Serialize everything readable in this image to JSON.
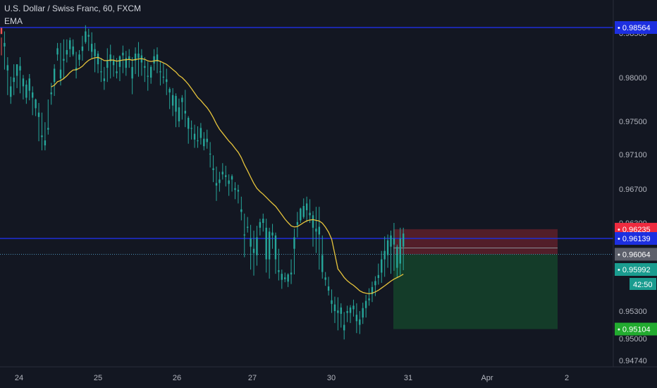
{
  "header": {
    "title": "U.S. Dollar / Swiss Franc, 60, FXCM",
    "indicator": "EMA"
  },
  "chart_data": {
    "type": "candlestick",
    "symbol": "U.S. Dollar / Swiss Franc",
    "interval": "60",
    "source": "FXCM",
    "colors": {
      "background": "#131722",
      "up": "#26a69a",
      "down": "#ef5350",
      "ema": "#e6c43c",
      "hline": "#1e2fd6",
      "current_line": "#4a8fb4",
      "stop_zone": "#5a1f2a",
      "target_zone": "#15402a",
      "tag_red": "#ef2b3f",
      "tag_blue": "#1d2fe0",
      "tag_gray": "#5d606b",
      "tag_teal": "#1a9c8f",
      "tag_green": "#22ab2f"
    },
    "y_ticks": [
      "0.98500",
      "0.98000",
      "0.97500",
      "0.97100",
      "0.96700",
      "0.96300",
      "0.95300",
      "0.95000",
      "0.94740"
    ],
    "x_ticks": [
      "24",
      "25",
      "26",
      "27",
      "30",
      "31",
      "Apr",
      "2"
    ],
    "horizontal_lines": [
      0.98564,
      0.96139
    ],
    "price_tags": [
      {
        "label": "0.98564",
        "value": 0.98564,
        "kind": "blue"
      },
      {
        "label": "0.96235",
        "value": 0.96235,
        "kind": "red"
      },
      {
        "label": "0.96139",
        "value": 0.96139,
        "kind": "blue"
      },
      {
        "label": "0.96064",
        "value": 0.96064,
        "kind": "gray"
      },
      {
        "label": "0.95992",
        "value": 0.95992,
        "kind": "teal"
      },
      {
        "label": "0.95104",
        "value": 0.95104,
        "kind": "green"
      }
    ],
    "countdown": "42:50",
    "current_price": 0.96064,
    "position": {
      "entry": 0.96064,
      "stop": 0.96235,
      "target": 0.95104
    },
    "ohlc": [
      [
        0.9856,
        0.9845,
        0.9849,
        0.9825
      ],
      [
        0.9835,
        0.9852,
        0.9839,
        0.9809
      ],
      [
        0.9808,
        0.9823,
        0.9814,
        0.978
      ],
      [
        0.9778,
        0.9801,
        0.979,
        0.977
      ],
      [
        0.9795,
        0.9815,
        0.98,
        0.978
      ],
      [
        0.9802,
        0.9812,
        0.9815,
        0.9788
      ],
      [
        0.9808,
        0.9823,
        0.9813,
        0.9782
      ],
      [
        0.979,
        0.9803,
        0.9799,
        0.9775
      ],
      [
        0.9777,
        0.9797,
        0.9792,
        0.977
      ],
      [
        0.9785,
        0.9804,
        0.9799,
        0.9774
      ],
      [
        0.9777,
        0.979,
        0.9783,
        0.9757
      ],
      [
        0.9765,
        0.9776,
        0.9775,
        0.9756
      ],
      [
        0.9755,
        0.9771,
        0.976,
        0.9726
      ],
      [
        0.9731,
        0.976,
        0.9733,
        0.9715
      ],
      [
        0.9721,
        0.9749,
        0.9727,
        0.9715
      ],
      [
        0.974,
        0.9775,
        0.9742,
        0.9734
      ],
      [
        0.9781,
        0.9794,
        0.9783,
        0.9769
      ],
      [
        0.9795,
        0.9815,
        0.981,
        0.9779
      ],
      [
        0.9826,
        0.9839,
        0.9833,
        0.9819
      ],
      [
        0.9799,
        0.9839,
        0.9809,
        0.9791
      ],
      [
        0.9819,
        0.9843,
        0.9821,
        0.9798
      ],
      [
        0.9826,
        0.9843,
        0.9831,
        0.9817
      ],
      [
        0.9832,
        0.9845,
        0.9842,
        0.9823
      ],
      [
        0.9826,
        0.9843,
        0.9835,
        0.9824
      ],
      [
        0.9808,
        0.9829,
        0.9811,
        0.9799
      ],
      [
        0.982,
        0.9831,
        0.9826,
        0.9813
      ],
      [
        0.983,
        0.9847,
        0.9835,
        0.9819
      ],
      [
        0.984,
        0.9859,
        0.9852,
        0.9838
      ],
      [
        0.9846,
        0.9855,
        0.9848,
        0.983
      ],
      [
        0.9829,
        0.9851,
        0.9838,
        0.9822
      ],
      [
        0.9824,
        0.9839,
        0.9832,
        0.9806
      ],
      [
        0.9815,
        0.983,
        0.9827,
        0.9805
      ],
      [
        0.9806,
        0.9822,
        0.9807,
        0.9795
      ],
      [
        0.9796,
        0.9812,
        0.9799,
        0.9786
      ],
      [
        0.9811,
        0.9833,
        0.9819,
        0.9795
      ],
      [
        0.9818,
        0.9837,
        0.9826,
        0.9799
      ],
      [
        0.9814,
        0.9825,
        0.9819,
        0.9801
      ],
      [
        0.9805,
        0.9822,
        0.9807,
        0.9799
      ],
      [
        0.9812,
        0.9825,
        0.9824,
        0.9796
      ],
      [
        0.9825,
        0.9836,
        0.9828,
        0.9805
      ],
      [
        0.9811,
        0.983,
        0.9822,
        0.9802
      ],
      [
        0.982,
        0.9832,
        0.9824,
        0.9811
      ],
      [
        0.9799,
        0.9823,
        0.9812,
        0.9781
      ],
      [
        0.9819,
        0.9834,
        0.9827,
        0.9804
      ],
      [
        0.9822,
        0.984,
        0.9827,
        0.9801
      ],
      [
        0.9817,
        0.9832,
        0.9825,
        0.9802
      ],
      [
        0.9811,
        0.9823,
        0.9813,
        0.9795
      ],
      [
        0.9801,
        0.9818,
        0.9802,
        0.9785
      ],
      [
        0.98,
        0.9814,
        0.9812,
        0.9793
      ],
      [
        0.9816,
        0.9832,
        0.9824,
        0.9808
      ],
      [
        0.9818,
        0.9834,
        0.9826,
        0.9805
      ],
      [
        0.9806,
        0.9818,
        0.9807,
        0.9791
      ],
      [
        0.98,
        0.9816,
        0.9801,
        0.9793
      ],
      [
        0.9795,
        0.981,
        0.9798,
        0.978
      ],
      [
        0.9783,
        0.9789,
        0.9787,
        0.9764
      ],
      [
        0.9768,
        0.9788,
        0.978,
        0.9756
      ],
      [
        0.9761,
        0.9782,
        0.9779,
        0.9743
      ],
      [
        0.975,
        0.9776,
        0.9766,
        0.9743
      ],
      [
        0.9772,
        0.978,
        0.9777,
        0.9752
      ],
      [
        0.9759,
        0.9786,
        0.9762,
        0.9743
      ],
      [
        0.9741,
        0.9756,
        0.9754,
        0.9723
      ],
      [
        0.9741,
        0.9751,
        0.9742,
        0.9728
      ],
      [
        0.9728,
        0.9746,
        0.9735,
        0.9718
      ],
      [
        0.9726,
        0.9744,
        0.9727,
        0.9718
      ],
      [
        0.973,
        0.9748,
        0.9742,
        0.9722
      ],
      [
        0.972,
        0.9737,
        0.9729,
        0.9715
      ],
      [
        0.9725,
        0.974,
        0.9729,
        0.9717
      ],
      [
        0.971,
        0.9725,
        0.9711,
        0.9695
      ],
      [
        0.9692,
        0.9709,
        0.9694,
        0.9678
      ],
      [
        0.9674,
        0.9696,
        0.9677,
        0.9656
      ],
      [
        0.9677,
        0.969,
        0.9681,
        0.9667
      ],
      [
        0.9687,
        0.97,
        0.969,
        0.9681
      ],
      [
        0.9684,
        0.9697,
        0.9686,
        0.9673
      ],
      [
        0.9676,
        0.9687,
        0.968,
        0.9662
      ],
      [
        0.9681,
        0.9687,
        0.9685,
        0.9667
      ],
      [
        0.9669,
        0.9678,
        0.9671,
        0.9658
      ],
      [
        0.9667,
        0.9675,
        0.9669,
        0.9653
      ],
      [
        0.9643,
        0.9661,
        0.9646,
        0.9633
      ],
      [
        0.9617,
        0.9641,
        0.9618,
        0.9605
      ],
      [
        0.9625,
        0.9637,
        0.9626,
        0.962
      ],
      [
        0.961,
        0.9628,
        0.9614,
        0.9599
      ],
      [
        0.9607,
        0.9622,
        0.9609,
        0.9589
      ],
      [
        0.9606,
        0.9627,
        0.9615,
        0.9601
      ],
      [
        0.9625,
        0.9635,
        0.9631,
        0.9617
      ],
      [
        0.963,
        0.9641,
        0.9635,
        0.9621
      ],
      [
        0.9604,
        0.9635,
        0.9625,
        0.9594
      ],
      [
        0.9604,
        0.9625,
        0.9621,
        0.9584
      ],
      [
        0.9617,
        0.9629,
        0.962,
        0.9609
      ],
      [
        0.9604,
        0.962,
        0.9617,
        0.9592
      ],
      [
        0.9595,
        0.9609,
        0.9598,
        0.9581
      ],
      [
        0.9582,
        0.9599,
        0.9592,
        0.9567
      ],
      [
        0.9583,
        0.9594,
        0.9586,
        0.9578
      ],
      [
        0.9579,
        0.9593,
        0.9591,
        0.957
      ],
      [
        0.9591,
        0.9604,
        0.9594,
        0.9575
      ],
      [
        0.9609,
        0.9624,
        0.9615,
        0.9591
      ],
      [
        0.9628,
        0.9643,
        0.9631,
        0.9615
      ],
      [
        0.9633,
        0.9648,
        0.9647,
        0.963
      ],
      [
        0.9637,
        0.9659,
        0.965,
        0.9635
      ],
      [
        0.9645,
        0.9661,
        0.9653,
        0.9631
      ],
      [
        0.9639,
        0.9658,
        0.9642,
        0.963
      ],
      [
        0.9625,
        0.9644,
        0.9639,
        0.961
      ],
      [
        0.9621,
        0.9649,
        0.9624,
        0.9607
      ],
      [
        0.9618,
        0.9649,
        0.9626,
        0.9599
      ],
      [
        0.9595,
        0.9617,
        0.9606,
        0.9584
      ],
      [
        0.9582,
        0.9595,
        0.9586,
        0.9572
      ],
      [
        0.9564,
        0.9587,
        0.9571,
        0.9556
      ],
      [
        0.9542,
        0.9566,
        0.9548,
        0.9528
      ],
      [
        0.953,
        0.9554,
        0.9541,
        0.9517
      ],
      [
        0.9528,
        0.9553,
        0.9531,
        0.9509
      ],
      [
        0.9527,
        0.9543,
        0.9536,
        0.9512
      ],
      [
        0.9509,
        0.9529,
        0.9515,
        0.9499
      ],
      [
        0.9528,
        0.9539,
        0.953,
        0.9518
      ],
      [
        0.9528,
        0.954,
        0.9536,
        0.9517
      ],
      [
        0.9533,
        0.9549,
        0.9539,
        0.9524
      ],
      [
        0.9519,
        0.9543,
        0.9526,
        0.9506
      ],
      [
        0.9515,
        0.953,
        0.9521,
        0.9505
      ],
      [
        0.9523,
        0.9544,
        0.9535,
        0.9516
      ],
      [
        0.9535,
        0.9557,
        0.9547,
        0.9523
      ],
      [
        0.9548,
        0.9568,
        0.9551,
        0.9539
      ],
      [
        0.9558,
        0.9579,
        0.957,
        0.9545
      ],
      [
        0.9573,
        0.9588,
        0.958,
        0.9555
      ],
      [
        0.9585,
        0.9602,
        0.959,
        0.9574
      ],
      [
        0.9594,
        0.9608,
        0.9604,
        0.9577
      ],
      [
        0.9604,
        0.9616,
        0.9608,
        0.9587
      ],
      [
        0.9606,
        0.9618,
        0.9613,
        0.96
      ],
      [
        0.961,
        0.9622,
        0.9617,
        0.9592
      ],
      [
        0.9611,
        0.963,
        0.9614,
        0.9597
      ],
      [
        0.96,
        0.9611,
        0.961,
        0.9585
      ],
      [
        0.9602,
        0.9625,
        0.9614,
        0.959
      ],
      [
        0.961,
        0.9625,
        0.9619,
        0.9598
      ]
    ]
  }
}
